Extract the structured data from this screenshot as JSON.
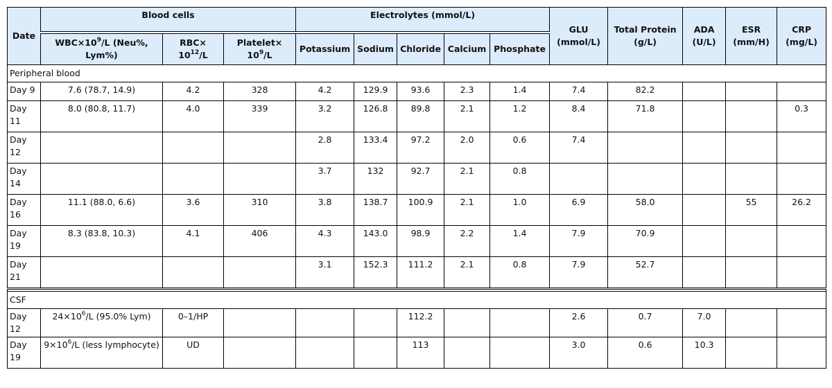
{
  "table": {
    "header_top": [
      {
        "text": "Date"
      },
      {
        "text": "Blood cells"
      },
      {
        "text": "Electrolytes (mmol/L)"
      },
      {
        "text": "GLU (mmol/L)"
      },
      {
        "text": "Total Protein (g/L)"
      },
      {
        "text": "ADA (U/L)"
      },
      {
        "text": "ESR (mm/H)"
      },
      {
        "text": "CRP (mg/L)"
      }
    ],
    "header_sub": [
      {
        "text": "WBC×10",
        "sup": "9",
        "after": "/L (Neu%, Lym%)"
      },
      {
        "text": "RBC× 10",
        "sup": "12",
        "after": "/L"
      },
      {
        "text": "Platelet× 10",
        "sup": "9",
        "after": "/L"
      },
      {
        "text": "Potassium"
      },
      {
        "text": "Sodium"
      },
      {
        "text": "Chloride"
      },
      {
        "text": "Calcium"
      },
      {
        "text": "Phosphate"
      }
    ],
    "sections": [
      {
        "title": "Peripheral blood",
        "rows": [
          [
            "Day 9",
            "7.6 (78.7, 14.9)",
            "4.2",
            "328",
            "4.2",
            "129.9",
            "93.6",
            "2.3",
            "1.4",
            "7.4",
            "82.2",
            null,
            null,
            null
          ],
          [
            "Day 11",
            "8.0 (80.8, 11.7)",
            "4.0",
            "339",
            "3.2",
            "126.8",
            "89.8",
            "2.1",
            "1.2",
            "8.4",
            "71.8",
            null,
            null,
            "0.3"
          ],
          [
            "Day 12",
            null,
            null,
            null,
            "2.8",
            "133.4",
            "97.2",
            "2.0",
            "0.6",
            "7.4",
            null,
            null,
            null,
            null
          ],
          [
            "Day 14",
            null,
            null,
            null,
            "3.7",
            "132",
            "92.7",
            "2.1",
            "0.8",
            null,
            null,
            null,
            null,
            null
          ],
          [
            "Day 16",
            "11.1 (88.0, 6.6)",
            "3.6",
            "310",
            "3.8",
            "138.7",
            "100.9",
            "2.1",
            "1.0",
            "6.9",
            "58.0",
            null,
            "55",
            "26.2"
          ],
          [
            "Day 19",
            "8.3 (83.8, 10.3)",
            "4.1",
            "406",
            "4.3",
            "143.0",
            "98.9",
            "2.2",
            "1.4",
            "7.9",
            "70.9",
            null,
            null,
            null
          ],
          [
            "Day 21",
            null,
            null,
            null,
            "3.1",
            "152.3",
            "111.2",
            "2.1",
            "0.8",
            "7.9",
            "52.7",
            null,
            null,
            null
          ]
        ]
      },
      {
        "title": "CSF",
        "rows": [
          [
            "Day 12",
            {
              "text": "24×10",
              "sup": "6",
              "after": "/L (95.0% Lym)"
            },
            "0–1/HP",
            null,
            null,
            null,
            "112.2",
            null,
            null,
            "2.6",
            "0.7",
            "7.0",
            null,
            null
          ],
          [
            "Day 19",
            {
              "text": "9×10",
              "sup": "6",
              "after": "/L (less lymphocyte)"
            },
            "UD",
            null,
            null,
            null,
            "113",
            null,
            null,
            "3.0",
            "0.6",
            "10.3",
            null,
            null
          ]
        ]
      }
    ]
  }
}
